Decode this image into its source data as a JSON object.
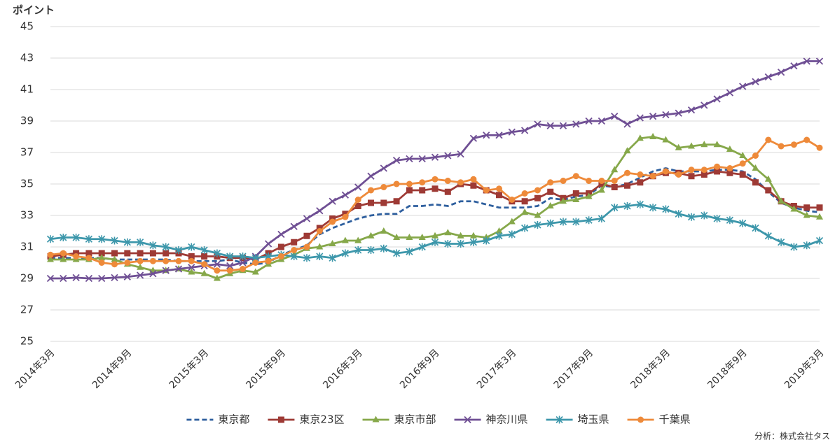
{
  "chart_data": {
    "type": "line",
    "y_label": "ポイント",
    "source": "分析：株式会社タス",
    "categories": [
      "2014年3月",
      null,
      null,
      null,
      null,
      null,
      "2014年9月",
      null,
      null,
      null,
      null,
      null,
      "2015年3月",
      null,
      null,
      null,
      null,
      null,
      "2015年9月",
      null,
      null,
      null,
      null,
      null,
      "2016年3月",
      null,
      null,
      null,
      null,
      null,
      "2016年9月",
      null,
      null,
      null,
      null,
      null,
      "2017年3月",
      null,
      null,
      null,
      null,
      null,
      "2017年9月",
      null,
      null,
      null,
      null,
      null,
      "2018年3月",
      null,
      null,
      null,
      null,
      null,
      "2018年9月",
      null,
      null,
      null,
      null,
      null,
      "2019年3月"
    ],
    "ylim": [
      25,
      45
    ],
    "yticks": [
      25,
      27,
      29,
      31,
      33,
      35,
      37,
      39,
      41,
      43,
      45
    ],
    "grid": true,
    "series": [
      {
        "name": "東京都",
        "color": "#2e5f9e",
        "marker": "none",
        "dash": true,
        "values": [
          30.3,
          30.3,
          30.3,
          30.3,
          30.3,
          30.2,
          30.2,
          30.2,
          30.2,
          30.2,
          30.1,
          30.1,
          30.1,
          30.1,
          30.2,
          30.0,
          29.9,
          30.0,
          30.5,
          30.8,
          31.1,
          31.8,
          32.2,
          32.5,
          32.8,
          33.0,
          33.1,
          33.1,
          33.6,
          33.6,
          33.7,
          33.6,
          33.9,
          33.9,
          33.7,
          33.5,
          33.5,
          33.5,
          33.6,
          34.1,
          34.0,
          34.2,
          34.3,
          34.9,
          34.8,
          35.0,
          35.4,
          35.8,
          36.0,
          35.8,
          35.8,
          35.8,
          35.9,
          35.9,
          35.8,
          35.3,
          34.5,
          33.8,
          33.5,
          33.3,
          33.2
        ]
      },
      {
        "name": "東京23区",
        "color": "#9e3a35",
        "marker": "square",
        "dash": false,
        "values": [
          30.4,
          30.5,
          30.6,
          30.6,
          30.6,
          30.6,
          30.6,
          30.6,
          30.6,
          30.6,
          30.6,
          30.4,
          30.4,
          30.4,
          30.3,
          30.3,
          30.2,
          30.6,
          31.0,
          31.3,
          31.7,
          32.2,
          32.8,
          33.1,
          33.6,
          33.8,
          33.8,
          33.9,
          34.6,
          34.6,
          34.7,
          34.5,
          35.0,
          34.9,
          34.6,
          34.3,
          33.9,
          33.9,
          34.1,
          34.5,
          34.1,
          34.4,
          34.4,
          35.0,
          34.8,
          34.9,
          35.1,
          35.5,
          35.7,
          35.7,
          35.5,
          35.6,
          35.8,
          35.7,
          35.6,
          35.1,
          34.6,
          33.9,
          33.6,
          33.5,
          33.5
        ]
      },
      {
        "name": "東京市部",
        "color": "#86a84a",
        "marker": "triangle",
        "dash": false,
        "values": [
          30.2,
          30.2,
          30.2,
          30.2,
          30.3,
          30.2,
          29.9,
          29.7,
          29.5,
          29.5,
          29.6,
          29.4,
          29.3,
          29.0,
          29.3,
          29.5,
          29.4,
          29.9,
          30.2,
          30.5,
          30.9,
          31.0,
          31.2,
          31.4,
          31.4,
          31.7,
          32.0,
          31.6,
          31.6,
          31.6,
          31.7,
          31.9,
          31.7,
          31.7,
          31.6,
          32.0,
          32.6,
          33.2,
          33.0,
          33.6,
          33.9,
          34.0,
          34.2,
          34.6,
          35.9,
          37.1,
          37.9,
          38.0,
          37.8,
          37.3,
          37.4,
          37.5,
          37.5,
          37.2,
          36.8,
          36.0,
          35.3,
          33.9,
          33.4,
          33.0,
          32.9
        ]
      },
      {
        "name": "神奈川県",
        "color": "#6f4f94",
        "marker": "x",
        "dash": false,
        "values": [
          29.0,
          29.0,
          29.05,
          29.0,
          29.0,
          29.05,
          29.1,
          29.2,
          29.3,
          29.5,
          29.6,
          29.7,
          29.8,
          29.9,
          29.8,
          30.0,
          30.4,
          31.2,
          31.8,
          32.3,
          32.8,
          33.3,
          33.9,
          34.3,
          34.8,
          35.5,
          36.0,
          36.5,
          36.6,
          36.6,
          36.7,
          36.8,
          36.9,
          37.9,
          38.1,
          38.1,
          38.3,
          38.4,
          38.8,
          38.7,
          38.7,
          38.8,
          39.0,
          39.0,
          39.3,
          38.8,
          39.2,
          39.3,
          39.4,
          39.5,
          39.7,
          40.0,
          40.4,
          40.8,
          41.2,
          41.5,
          41.8,
          42.1,
          42.5,
          42.8,
          42.8
        ]
      },
      {
        "name": "埼玉県",
        "color": "#3d97ab",
        "marker": "asterisk",
        "dash": false,
        "values": [
          31.5,
          31.6,
          31.6,
          31.5,
          31.5,
          31.4,
          31.3,
          31.3,
          31.1,
          31.0,
          30.8,
          31.0,
          30.8,
          30.6,
          30.4,
          30.4,
          30.3,
          30.4,
          30.5,
          30.4,
          30.3,
          30.4,
          30.3,
          30.6,
          30.8,
          30.8,
          30.9,
          30.6,
          30.7,
          31.0,
          31.3,
          31.2,
          31.2,
          31.3,
          31.4,
          31.7,
          31.8,
          32.2,
          32.4,
          32.5,
          32.6,
          32.6,
          32.7,
          32.8,
          33.5,
          33.6,
          33.7,
          33.5,
          33.4,
          33.1,
          32.9,
          33.0,
          32.8,
          32.7,
          32.5,
          32.2,
          31.7,
          31.3,
          31.0,
          31.1,
          31.4
        ]
      },
      {
        "name": "千葉県",
        "color": "#ee8a3a",
        "marker": "circle",
        "dash": false,
        "values": [
          30.5,
          30.6,
          30.4,
          30.3,
          30.0,
          29.9,
          30.0,
          30.1,
          30.1,
          30.1,
          30.1,
          30.1,
          29.9,
          29.5,
          29.5,
          29.6,
          30.0,
          30.1,
          30.4,
          30.8,
          31.0,
          32.0,
          32.6,
          32.9,
          34.0,
          34.6,
          34.8,
          35.0,
          35.0,
          35.1,
          35.3,
          35.2,
          35.1,
          35.3,
          34.6,
          34.7,
          34.0,
          34.4,
          34.6,
          35.1,
          35.2,
          35.5,
          35.2,
          35.2,
          35.2,
          35.7,
          35.6,
          35.5,
          35.8,
          35.6,
          35.9,
          35.9,
          36.1,
          36.0,
          36.3,
          36.8,
          37.8,
          37.4,
          37.5,
          37.8,
          37.3
        ]
      }
    ]
  }
}
